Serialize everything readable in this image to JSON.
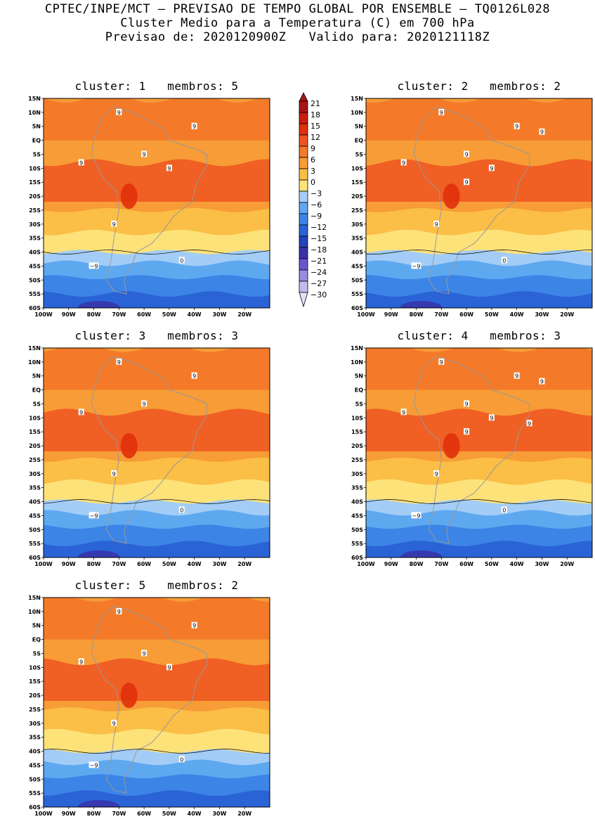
{
  "header": {
    "line1": "CPTEC/INPE/MCT – PREVISAO DE TEMPO GLOBAL POR ENSEMBLE – TQ0126L028",
    "line2": "Cluster Medio para a Temperatura (C) em 700 hPa",
    "line3": "Previsao de: 2020120900Z   Valido para: 2020121118Z"
  },
  "lat_ticks": [
    "15N",
    "10N",
    "5N",
    "EQ",
    "5S",
    "10S",
    "15S",
    "20S",
    "25S",
    "30S",
    "35S",
    "40S",
    "45S",
    "50S",
    "55S",
    "60S"
  ],
  "lon_ticks": [
    "100W",
    "90W",
    "80W",
    "70W",
    "60W",
    "50W",
    "40W",
    "30W",
    "20W"
  ],
  "colorbar": {
    "labels": [
      "21",
      "18",
      "15",
      "12",
      "9",
      "6",
      "3",
      "0",
      "-3",
      "-6",
      "-9",
      "-12",
      "-15",
      "-18",
      "-21",
      "-24",
      "-27",
      "-30"
    ],
    "colors": [
      "#a61414",
      "#c91d0f",
      "#e0310c",
      "#ee5520",
      "#f47a2a",
      "#f79c36",
      "#fbbe46",
      "#fde27a",
      "#a3cdf6",
      "#5ea8f0",
      "#3c84e6",
      "#2a63d6",
      "#2144b8",
      "#3a30a8",
      "#6a55d0",
      "#9b8ae0",
      "#c6b8ef",
      "#e6e0f7"
    ]
  },
  "clusters": [
    {
      "title": "cluster: 1   membros: 5",
      "labels": [
        "9",
        "9",
        "9",
        "9",
        "9",
        "9",
        "-9",
        "0"
      ]
    },
    {
      "title": "cluster: 2   membros: 2",
      "labels": [
        "9",
        "9",
        "9",
        "9",
        "9",
        "9",
        "9",
        "9",
        "-9",
        "0"
      ]
    },
    {
      "title": "cluster: 3   membros: 3",
      "labels": [
        "9",
        "9",
        "9",
        "9",
        "9",
        "-9",
        "0"
      ]
    },
    {
      "title": "cluster: 4   membros: 3",
      "labels": [
        "9",
        "9",
        "9",
        "9",
        "9",
        "9",
        "9",
        "9",
        "9",
        "-9",
        "0"
      ]
    },
    {
      "title": "cluster: 5   membros: 2",
      "labels": [
        "9",
        "9",
        "9",
        "9",
        "9",
        "9",
        "-9",
        "0"
      ]
    }
  ]
}
